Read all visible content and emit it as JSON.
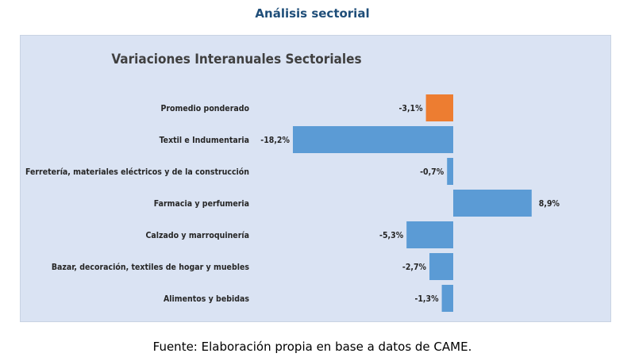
{
  "heading": "Análisis sectorial",
  "source": "Fuente: Elaboración propia en base a datos de CAME.",
  "chart_data": {
    "type": "bar",
    "orientation": "horizontal",
    "title": "Variaciones Interanuales Sectoriales",
    "xlabel": "",
    "ylabel": "",
    "xlim": [
      -21,
      11
    ],
    "grid": false,
    "legend": "none",
    "categories": [
      "Promedio ponderado",
      "Textil e Indumentaria",
      "Ferretería, materiales eléctricos y  de la construcción",
      "Farmacia y perfumeria",
      "Calzado y marroquinería",
      "Bazar, decoración, textiles de hogar y muebles",
      "Alimentos y bebidas"
    ],
    "values": [
      -3.1,
      -18.2,
      -0.7,
      8.9,
      -5.3,
      -2.7,
      -1.3
    ],
    "value_labels": [
      "-3,1%",
      "-18,2%",
      "-0,7%",
      "8,9%",
      "-5,3%",
      "-2,7%",
      "-1,3%"
    ],
    "colors": [
      "#ed7d31",
      "#5b9bd5",
      "#5b9bd5",
      "#5b9bd5",
      "#5b9bd5",
      "#5b9bd5",
      "#5b9bd5"
    ]
  }
}
